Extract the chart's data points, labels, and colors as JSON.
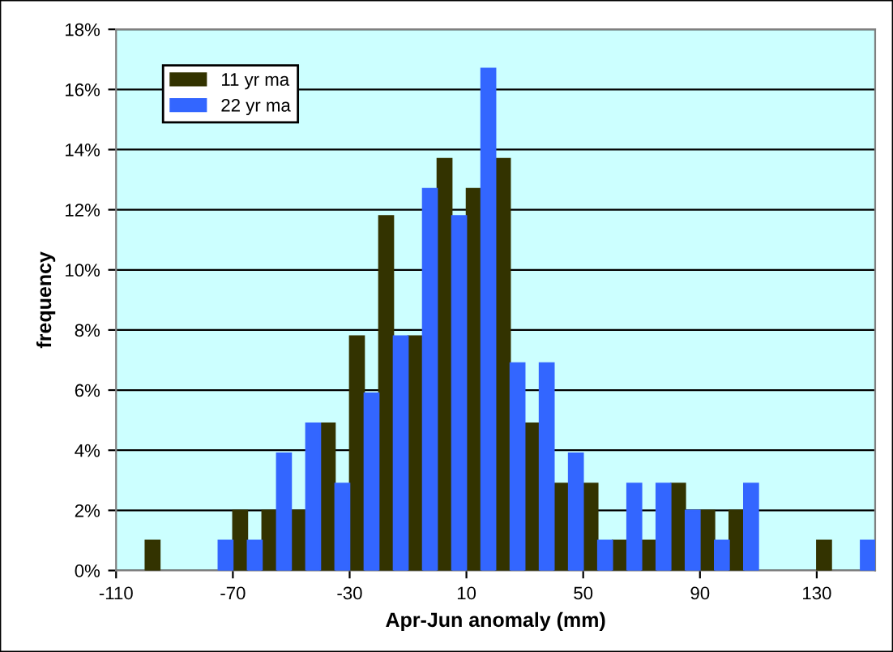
{
  "chart_data": {
    "type": "histogram",
    "xlabel": "Apr-Jun anomaly (mm)",
    "ylabel": "frequency",
    "bins": [
      -110,
      -100,
      -90,
      -80,
      -70,
      -60,
      -50,
      -40,
      -30,
      -20,
      -10,
      0,
      10,
      20,
      30,
      40,
      50,
      60,
      70,
      80,
      90,
      100,
      110,
      120,
      130,
      140,
      150
    ],
    "series": [
      {
        "name": "11 yr ma",
        "color": "#333300",
        "values": [
          0,
          1.0,
          0,
          0,
          2.0,
          2.0,
          2.0,
          4.9,
          7.8,
          11.8,
          7.8,
          13.7,
          12.7,
          13.7,
          4.9,
          2.9,
          2.9,
          1.0,
          1.0,
          2.9,
          2.0,
          2.0,
          0,
          0,
          1.0,
          0
        ]
      },
      {
        "name": "22 yr ma",
        "color": "#3366ff",
        "values": [
          0,
          0,
          0,
          1.0,
          1.0,
          3.9,
          4.9,
          2.9,
          5.9,
          7.8,
          12.7,
          11.8,
          16.7,
          6.9,
          6.9,
          3.9,
          1.0,
          2.9,
          2.9,
          2.0,
          1.0,
          2.9,
          0,
          0,
          0,
          1.0
        ]
      }
    ],
    "xlim": [
      -110,
      150
    ],
    "xticks": [
      -110,
      -70,
      -30,
      10,
      50,
      90,
      130
    ],
    "ylim": [
      0,
      18
    ],
    "yticks": [
      {
        "value": 0,
        "label": "0%"
      },
      {
        "value": 2,
        "label": "2%"
      },
      {
        "value": 4,
        "label": "4%"
      },
      {
        "value": 6,
        "label": "6%"
      },
      {
        "value": 8,
        "label": "8%"
      },
      {
        "value": 10,
        "label": "10%"
      },
      {
        "value": 12,
        "label": "12%"
      },
      {
        "value": 14,
        "label": "14%"
      },
      {
        "value": 16,
        "label": "16%"
      },
      {
        "value": 18,
        "label": "18%"
      }
    ],
    "grid": "y",
    "legend": "top left"
  }
}
